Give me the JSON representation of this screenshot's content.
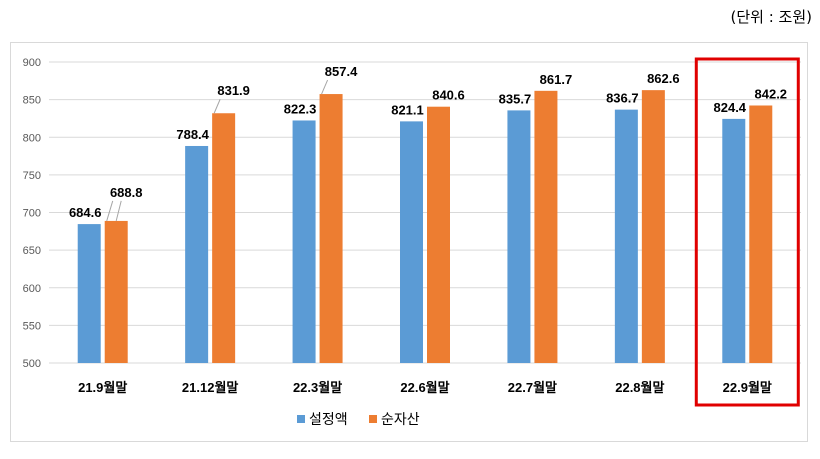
{
  "unit_note": "(단위 : 조원)",
  "colors": {
    "series1": "#5b9bd5",
    "series2": "#ed7d31",
    "highlight": "#e00000",
    "grid": "#d9d9d9"
  },
  "chart_data": {
    "type": "bar",
    "title": "",
    "xlabel": "",
    "ylabel": "",
    "ylim": [
      500,
      900
    ],
    "yticks": [
      500,
      550,
      600,
      650,
      700,
      750,
      800,
      850,
      900
    ],
    "grid": true,
    "legend_position": "bottom",
    "categories": [
      "21.9월말",
      "21.12월말",
      "22.3월말",
      "22.6월말",
      "22.7월말",
      "22.8월말",
      "22.9월말"
    ],
    "series": [
      {
        "name": "설정액",
        "values": [
          684.6,
          788.4,
          822.3,
          821.1,
          835.7,
          836.7,
          824.4
        ]
      },
      {
        "name": "순자산",
        "values": [
          688.8,
          831.9,
          857.4,
          840.6,
          861.7,
          862.6,
          842.2
        ]
      }
    ],
    "highlighted_category": "22.9월말"
  }
}
